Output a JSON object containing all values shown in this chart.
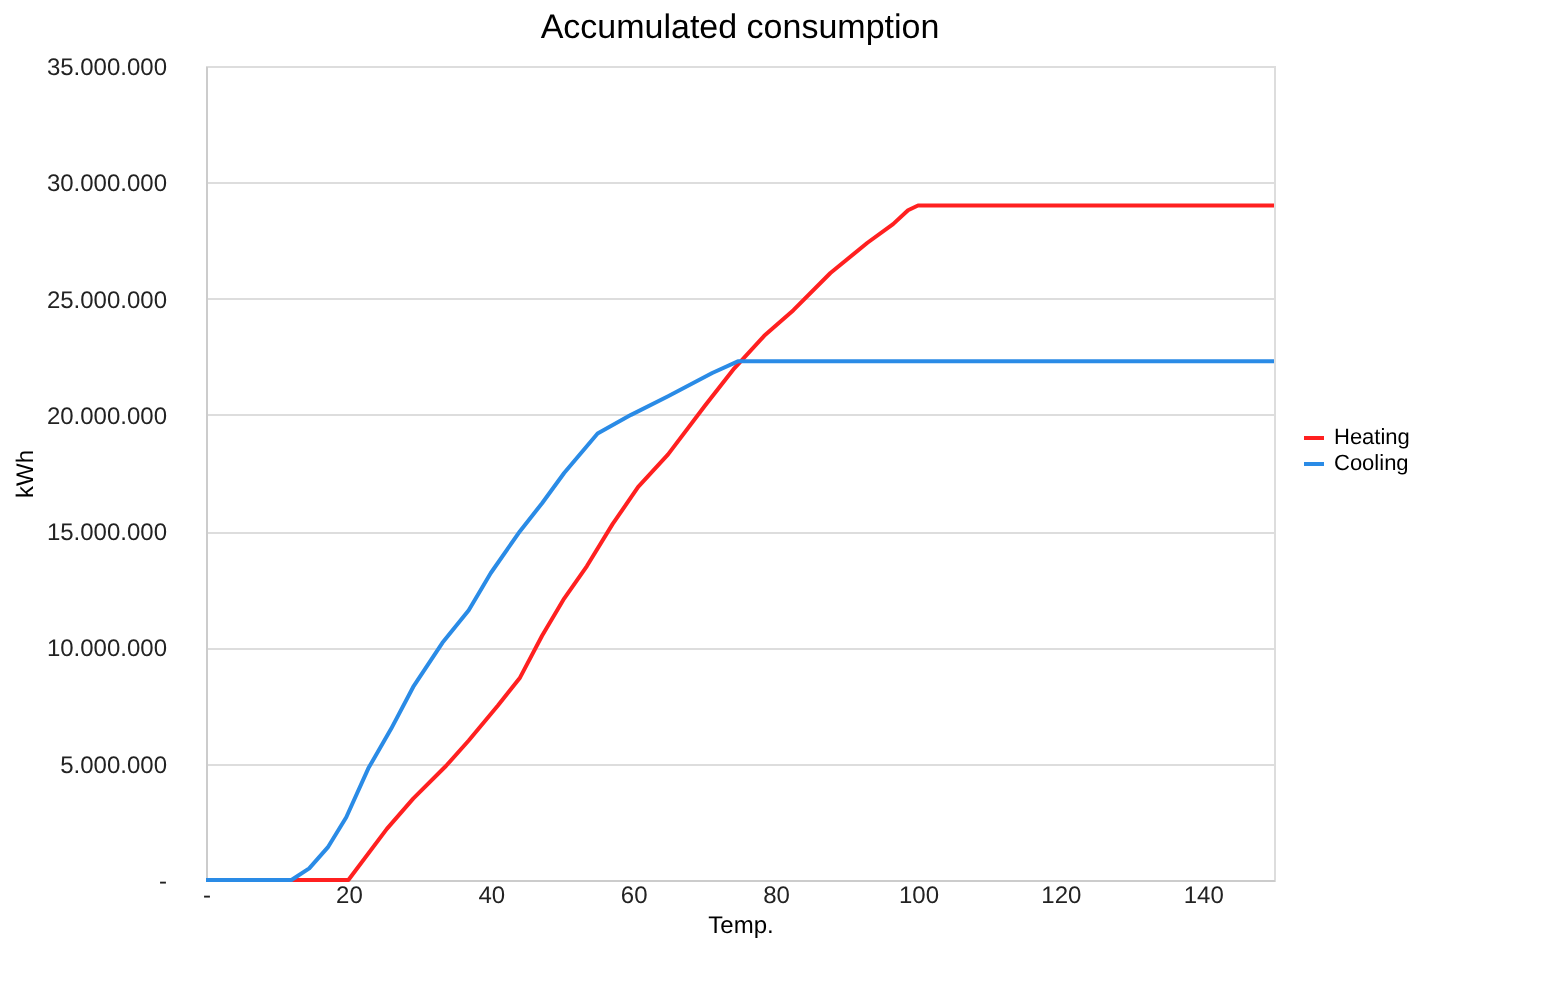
{
  "chart_data": {
    "type": "line",
    "title": "Accumulated consumption",
    "xlabel": "Temp.",
    "ylabel": "kWh",
    "xlim": [
      0,
      150
    ],
    "xticks": [
      {
        "value": 0,
        "label": "-"
      },
      20,
      40,
      60,
      80,
      100,
      120,
      140
    ],
    "ylim": [
      0,
      35000000
    ],
    "yticks": [
      {
        "value": 0,
        "label": "-"
      },
      {
        "value": 5000000,
        "label": "5.000.000"
      },
      {
        "value": 10000000,
        "label": "10.000.000"
      },
      {
        "value": 15000000,
        "label": "15.000.000"
      },
      {
        "value": 20000000,
        "label": "20.000.000"
      },
      {
        "value": 25000000,
        "label": "25.000.000"
      },
      {
        "value": 30000000,
        "label": "30.000.000"
      },
      {
        "value": 35000000,
        "label": "35.000.000"
      }
    ],
    "grid": "y",
    "legend": "right",
    "marker": "none",
    "line_style": "solid",
    "series": [
      {
        "name": "Heating",
        "color": "#ff2020",
        "x": [
          12,
          20,
          25.4,
          29.1,
          33.7,
          36.9,
          41.0,
          44.1,
          47.2,
          50.3,
          53.5,
          57.1,
          60.7,
          64.9,
          70.1,
          74.2,
          78.4,
          82.5,
          87.7,
          92.9,
          96.5,
          98.6,
          100,
          150
        ],
        "values": [
          0,
          0,
          2200000,
          3500000,
          4900000,
          6000000,
          7500000,
          8700000,
          10500000,
          12100000,
          13500000,
          15300000,
          16900000,
          18300000,
          20400000,
          22000000,
          23400000,
          24500000,
          26100000,
          27400000,
          28200000,
          28800000,
          29000000,
          29000000
        ]
      },
      {
        "name": "Cooling",
        "color": "#2a8be6",
        "x": [
          0,
          12,
          14.5,
          17.1,
          19.7,
          22.8,
          26.0,
          29.1,
          33.2,
          36.9,
          40.0,
          44.1,
          47.2,
          50.3,
          55.0,
          59.7,
          64.9,
          71.1,
          74.7,
          150
        ],
        "values": [
          0,
          0,
          500000,
          1400000,
          2700000,
          4800000,
          6500000,
          8300000,
          10200000,
          11600000,
          13200000,
          15000000,
          16200000,
          17500000,
          19200000,
          20000000,
          20800000,
          21800000,
          22300000,
          22300000
        ]
      }
    ]
  }
}
